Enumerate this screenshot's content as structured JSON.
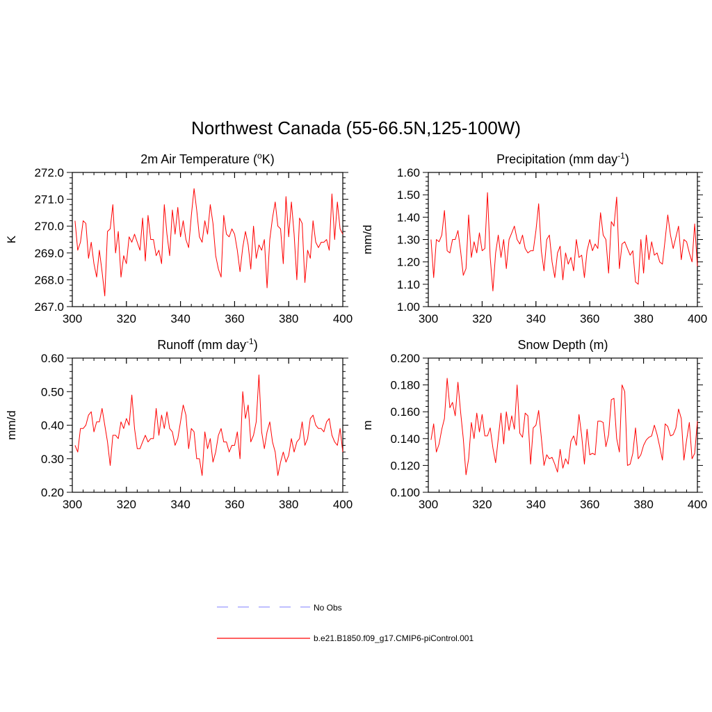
{
  "figure": {
    "title": "Northwest Canada (55-66.5N,125-100W)",
    "legend": {
      "obs_label": "No Obs",
      "obs_color": "#9999ff",
      "model_label": "b.e21.B1850.f09_g17.CMIP6-piControl.001",
      "model_color": "#ff0000"
    }
  },
  "chart_data": [
    {
      "type": "line",
      "title": "2m Air Temperature (°K)",
      "ylabel": "K",
      "xlim": [
        300,
        400
      ],
      "ylim": [
        267.0,
        272.0
      ],
      "xticks": [
        300,
        320,
        340,
        360,
        380,
        400
      ],
      "xtick_labels": [
        "300",
        "320",
        "340",
        "360",
        "380",
        "400"
      ],
      "yticks": [
        267.0,
        268.0,
        269.0,
        270.0,
        271.0,
        272.0
      ],
      "ytick_labels": [
        "267.0",
        "268.0",
        "269.0",
        "270.0",
        "271.0",
        "272.0"
      ],
      "series": [
        {
          "name": "b.e21.B1850.f09_g17.CMIP6-piControl.001",
          "color": "#ff0000",
          "x": [
            301,
            302,
            303,
            304,
            305,
            306,
            307,
            308,
            309,
            310,
            311,
            312,
            313,
            314,
            315,
            316,
            317,
            318,
            319,
            320,
            321,
            322,
            323,
            324,
            325,
            326,
            327,
            328,
            329,
            330,
            331,
            332,
            333,
            334,
            335,
            336,
            337,
            338,
            339,
            340,
            341,
            342,
            343,
            344,
            345,
            346,
            347,
            348,
            349,
            350,
            351,
            352,
            353,
            354,
            355,
            356,
            357,
            358,
            359,
            360,
            361,
            362,
            363,
            364,
            365,
            366,
            367,
            368,
            369,
            370,
            371,
            372,
            373,
            374,
            375,
            376,
            377,
            378,
            379,
            380,
            381,
            382,
            383,
            384,
            385,
            386,
            387,
            388,
            389,
            390,
            391,
            392,
            393,
            394,
            395,
            396,
            397,
            398,
            399,
            400
          ],
          "values": [
            270.2,
            269.1,
            269.4,
            270.2,
            270.1,
            268.8,
            269.4,
            268.6,
            268.1,
            269.1,
            268.3,
            267.4,
            269.8,
            269.9,
            270.8,
            269.0,
            269.8,
            268.1,
            268.9,
            268.6,
            269.6,
            269.4,
            269.7,
            269.4,
            269.1,
            270.3,
            268.7,
            270.4,
            269.5,
            269.5,
            268.9,
            269.1,
            268.6,
            270.8,
            269.7,
            268.9,
            270.6,
            269.7,
            270.7,
            269.6,
            270.2,
            269.5,
            269.2,
            270.4,
            271.4,
            270.6,
            269.6,
            269.4,
            270.2,
            269.7,
            270.8,
            270.1,
            268.9,
            268.4,
            268.1,
            270.4,
            269.7,
            269.6,
            269.9,
            269.7,
            269.1,
            268.3,
            269.2,
            269.8,
            269.3,
            268.4,
            270.0,
            268.8,
            269.3,
            269.1,
            269.5,
            267.7,
            269.5,
            270.3,
            270.9,
            270.0,
            269.9,
            268.6,
            271.1,
            269.6,
            270.9,
            269.7,
            268.0,
            270.3,
            270.1,
            267.9,
            269.1,
            268.8,
            270.2,
            269.4,
            269.2,
            269.4,
            269.4,
            269.5,
            269.1,
            271.2,
            269.5,
            270.9,
            269.9,
            269.7
          ]
        }
      ]
    },
    {
      "type": "line",
      "title": "Precipitation (mm day⁻¹)",
      "ylabel": "mm/d",
      "xlim": [
        300,
        400
      ],
      "ylim": [
        1.0,
        1.6
      ],
      "xticks": [
        300,
        320,
        340,
        360,
        380,
        400
      ],
      "xtick_labels": [
        "300",
        "320",
        "340",
        "360",
        "380",
        "400"
      ],
      "yticks": [
        1.0,
        1.1,
        1.2,
        1.3,
        1.4,
        1.5,
        1.6
      ],
      "ytick_labels": [
        "1.00",
        "1.10",
        "1.20",
        "1.30",
        "1.40",
        "1.50",
        "1.60"
      ],
      "series": [
        {
          "name": "b.e21.B1850.f09_g17.CMIP6-piControl.001",
          "color": "#ff0000",
          "x": [
            301,
            302,
            303,
            304,
            305,
            306,
            307,
            308,
            309,
            310,
            311,
            312,
            313,
            314,
            315,
            316,
            317,
            318,
            319,
            320,
            321,
            322,
            323,
            324,
            325,
            326,
            327,
            328,
            329,
            330,
            331,
            332,
            333,
            334,
            335,
            336,
            337,
            338,
            339,
            340,
            341,
            342,
            343,
            344,
            345,
            346,
            347,
            348,
            349,
            350,
            351,
            352,
            353,
            354,
            355,
            356,
            357,
            358,
            359,
            360,
            361,
            362,
            363,
            364,
            365,
            366,
            367,
            368,
            369,
            370,
            371,
            372,
            373,
            374,
            375,
            376,
            377,
            378,
            379,
            380,
            381,
            382,
            383,
            384,
            385,
            386,
            387,
            388,
            389,
            390,
            391,
            392,
            393,
            394,
            395,
            396,
            397,
            398,
            399,
            400
          ],
          "values": [
            1.3,
            1.13,
            1.3,
            1.29,
            1.32,
            1.43,
            1.25,
            1.24,
            1.3,
            1.3,
            1.34,
            1.25,
            1.14,
            1.17,
            1.41,
            1.22,
            1.29,
            1.24,
            1.33,
            1.25,
            1.26,
            1.51,
            1.22,
            1.07,
            1.24,
            1.32,
            1.22,
            1.3,
            1.17,
            1.3,
            1.33,
            1.36,
            1.3,
            1.28,
            1.32,
            1.26,
            1.24,
            1.25,
            1.25,
            1.34,
            1.46,
            1.25,
            1.16,
            1.3,
            1.32,
            1.2,
            1.13,
            1.24,
            1.27,
            1.12,
            1.24,
            1.19,
            1.22,
            1.16,
            1.3,
            1.22,
            1.23,
            1.13,
            1.25,
            1.3,
            1.25,
            1.28,
            1.26,
            1.42,
            1.32,
            1.3,
            1.15,
            1.38,
            1.36,
            1.49,
            1.17,
            1.28,
            1.29,
            1.26,
            1.23,
            1.25,
            1.11,
            1.1,
            1.3,
            1.15,
            1.32,
            1.21,
            1.29,
            1.23,
            1.24,
            1.2,
            1.19,
            1.3,
            1.41,
            1.32,
            1.26,
            1.31,
            1.36,
            1.21,
            1.3,
            1.29,
            1.24,
            1.2,
            1.37,
            1.18
          ]
        }
      ]
    },
    {
      "type": "line",
      "title": "Runoff (mm day⁻¹)",
      "ylabel": "mm/d",
      "xlim": [
        300,
        400
      ],
      "ylim": [
        0.2,
        0.6
      ],
      "xticks": [
        300,
        320,
        340,
        360,
        380,
        400
      ],
      "xtick_labels": [
        "300",
        "320",
        "340",
        "360",
        "380",
        "400"
      ],
      "yticks": [
        0.2,
        0.3,
        0.4,
        0.5,
        0.6
      ],
      "ytick_labels": [
        "0.20",
        "0.30",
        "0.40",
        "0.50",
        "0.60"
      ],
      "series": [
        {
          "name": "b.e21.B1850.f09_g17.CMIP6-piControl.001",
          "color": "#ff0000",
          "x": [
            301,
            302,
            303,
            304,
            305,
            306,
            307,
            308,
            309,
            310,
            311,
            312,
            313,
            314,
            315,
            316,
            317,
            318,
            319,
            320,
            321,
            322,
            323,
            324,
            325,
            326,
            327,
            328,
            329,
            330,
            331,
            332,
            333,
            334,
            335,
            336,
            337,
            338,
            339,
            340,
            341,
            342,
            343,
            344,
            345,
            346,
            347,
            348,
            349,
            350,
            351,
            352,
            353,
            354,
            355,
            356,
            357,
            358,
            359,
            360,
            361,
            362,
            363,
            364,
            365,
            366,
            367,
            368,
            369,
            370,
            371,
            372,
            373,
            374,
            375,
            376,
            377,
            378,
            379,
            380,
            381,
            382,
            383,
            384,
            385,
            386,
            387,
            388,
            389,
            390,
            391,
            392,
            393,
            394,
            395,
            396,
            397,
            398,
            399,
            400
          ],
          "values": [
            0.34,
            0.32,
            0.39,
            0.39,
            0.4,
            0.43,
            0.44,
            0.38,
            0.41,
            0.41,
            0.45,
            0.4,
            0.35,
            0.28,
            0.37,
            0.37,
            0.36,
            0.41,
            0.39,
            0.42,
            0.4,
            0.49,
            0.39,
            0.33,
            0.33,
            0.35,
            0.37,
            0.35,
            0.36,
            0.36,
            0.45,
            0.37,
            0.43,
            0.39,
            0.44,
            0.39,
            0.38,
            0.34,
            0.36,
            0.41,
            0.46,
            0.43,
            0.33,
            0.39,
            0.38,
            0.3,
            0.3,
            0.25,
            0.38,
            0.33,
            0.36,
            0.29,
            0.32,
            0.37,
            0.39,
            0.35,
            0.35,
            0.32,
            0.34,
            0.34,
            0.38,
            0.3,
            0.5,
            0.42,
            0.46,
            0.35,
            0.37,
            0.41,
            0.55,
            0.38,
            0.33,
            0.38,
            0.41,
            0.35,
            0.32,
            0.25,
            0.29,
            0.32,
            0.29,
            0.31,
            0.36,
            0.32,
            0.35,
            0.36,
            0.41,
            0.34,
            0.36,
            0.42,
            0.43,
            0.4,
            0.39,
            0.39,
            0.38,
            0.41,
            0.42,
            0.37,
            0.35,
            0.34,
            0.39,
            0.32
          ]
        }
      ]
    },
    {
      "type": "line",
      "title": "Snow Depth (m)",
      "ylabel": "m",
      "xlim": [
        300,
        400
      ],
      "ylim": [
        0.1,
        0.2
      ],
      "xticks": [
        300,
        320,
        340,
        360,
        380,
        400
      ],
      "xtick_labels": [
        "300",
        "320",
        "340",
        "360",
        "380",
        "400"
      ],
      "yticks": [
        0.1,
        0.12,
        0.14,
        0.16,
        0.18,
        0.2
      ],
      "ytick_labels": [
        "0.100",
        "0.120",
        "0.140",
        "0.160",
        "0.180",
        "0.200"
      ],
      "series": [
        {
          "name": "b.e21.B1850.f09_g17.CMIP6-piControl.001",
          "color": "#ff0000",
          "x": [
            301,
            302,
            303,
            304,
            305,
            306,
            307,
            308,
            309,
            310,
            311,
            312,
            313,
            314,
            315,
            316,
            317,
            318,
            319,
            320,
            321,
            322,
            323,
            324,
            325,
            326,
            327,
            328,
            329,
            330,
            331,
            332,
            333,
            334,
            335,
            336,
            337,
            338,
            339,
            340,
            341,
            342,
            343,
            344,
            345,
            346,
            347,
            348,
            349,
            350,
            351,
            352,
            353,
            354,
            355,
            356,
            357,
            358,
            359,
            360,
            361,
            362,
            363,
            364,
            365,
            366,
            367,
            368,
            369,
            370,
            371,
            372,
            373,
            374,
            375,
            376,
            377,
            378,
            379,
            380,
            381,
            382,
            383,
            384,
            385,
            386,
            387,
            388,
            389,
            390,
            391,
            392,
            393,
            394,
            395,
            396,
            397,
            398,
            399,
            400
          ],
          "values": [
            0.139,
            0.151,
            0.13,
            0.136,
            0.147,
            0.155,
            0.185,
            0.163,
            0.167,
            0.157,
            0.182,
            0.16,
            0.14,
            0.113,
            0.125,
            0.152,
            0.14,
            0.159,
            0.145,
            0.158,
            0.142,
            0.142,
            0.148,
            0.133,
            0.122,
            0.14,
            0.159,
            0.136,
            0.16,
            0.146,
            0.157,
            0.147,
            0.18,
            0.144,
            0.141,
            0.159,
            0.157,
            0.121,
            0.148,
            0.15,
            0.161,
            0.141,
            0.12,
            0.128,
            0.125,
            0.126,
            0.121,
            0.115,
            0.132,
            0.118,
            0.125,
            0.121,
            0.138,
            0.142,
            0.135,
            0.158,
            0.142,
            0.121,
            0.147,
            0.128,
            0.129,
            0.128,
            0.153,
            0.153,
            0.152,
            0.134,
            0.143,
            0.169,
            0.17,
            0.14,
            0.13,
            0.18,
            0.175,
            0.12,
            0.121,
            0.129,
            0.148,
            0.125,
            0.128,
            0.135,
            0.139,
            0.141,
            0.142,
            0.15,
            0.143,
            0.134,
            0.124,
            0.151,
            0.149,
            0.142,
            0.143,
            0.148,
            0.162,
            0.155,
            0.124,
            0.139,
            0.152,
            0.125,
            0.129,
            0.153
          ]
        }
      ]
    }
  ]
}
